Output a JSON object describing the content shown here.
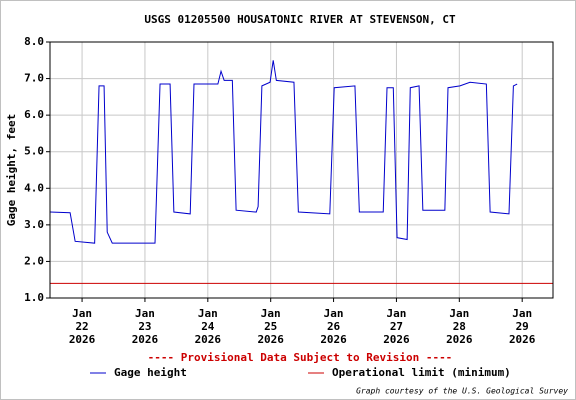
{
  "chart_data": {
    "type": "line",
    "title": "USGS 01205500 HOUSATONIC RIVER AT STEVENSON, CT",
    "y_label": "Gage height, feet",
    "notice": "---- Provisional Data Subject to Revision ----",
    "credit": "Graph courtesy of the U.S. Geological Survey",
    "xlim": [
      21.49,
      29.49
    ],
    "ylim": [
      1.0,
      8.0
    ],
    "yticks": [
      {
        "value": 1,
        "label": "1.0"
      },
      {
        "value": 2,
        "label": "2.0"
      },
      {
        "value": 3,
        "label": "3.0"
      },
      {
        "value": 4,
        "label": "4.0"
      },
      {
        "value": 5,
        "label": "5.0"
      },
      {
        "value": 6,
        "label": "6.0"
      },
      {
        "value": 7,
        "label": "7.0"
      },
      {
        "value": 8,
        "label": "8.0"
      }
    ],
    "xticks": [
      {
        "value": 22,
        "label": "Jan\n22\n2026"
      },
      {
        "value": 23,
        "label": "Jan\n23\n2026"
      },
      {
        "value": 24,
        "label": "Jan\n24\n2026"
      },
      {
        "value": 25,
        "label": "Jan\n25\n2026"
      },
      {
        "value": 26,
        "label": "Jan\n26\n2026"
      },
      {
        "value": 27,
        "label": "Jan\n27\n2026"
      },
      {
        "value": 28,
        "label": "Jan\n28\n2026"
      },
      {
        "value": 29,
        "label": "Jan\n29\n2026"
      }
    ],
    "grid": true,
    "series": [
      {
        "name": "Gage height",
        "color": "#0000cc",
        "x": [
          21.49,
          21.81,
          21.89,
          22.2,
          22.27,
          22.35,
          22.4,
          22.48,
          23.16,
          23.24,
          23.4,
          23.46,
          23.72,
          23.78,
          24.16,
          24.21,
          24.26,
          24.39,
          24.45,
          24.77,
          24.8,
          24.86,
          24.99,
          25.04,
          25.09,
          25.37,
          25.44,
          25.94,
          26.01,
          26.34,
          26.41,
          26.79,
          26.85,
          26.95,
          27.01,
          27.17,
          27.22,
          27.36,
          27.42,
          27.77,
          27.82,
          28.01,
          28.17,
          28.43,
          28.49,
          28.79,
          28.86,
          28.92
        ],
        "values": [
          3.35,
          3.33,
          2.55,
          2.5,
          6.8,
          6.8,
          2.8,
          2.5,
          2.5,
          6.85,
          6.85,
          3.35,
          3.3,
          6.85,
          6.85,
          7.2,
          6.95,
          6.95,
          3.4,
          3.35,
          3.5,
          6.8,
          6.9,
          7.5,
          6.95,
          6.9,
          3.35,
          3.3,
          6.75,
          6.8,
          3.35,
          3.35,
          6.75,
          6.75,
          2.65,
          2.6,
          6.75,
          6.8,
          3.4,
          3.4,
          6.75,
          6.8,
          6.9,
          6.85,
          3.35,
          3.3,
          6.8,
          6.85
        ]
      },
      {
        "name": "Operational limit (minimum)",
        "color": "#cc0000",
        "x": [
          21.49,
          29.49
        ],
        "values": [
          1.4,
          1.4
        ]
      }
    ]
  }
}
